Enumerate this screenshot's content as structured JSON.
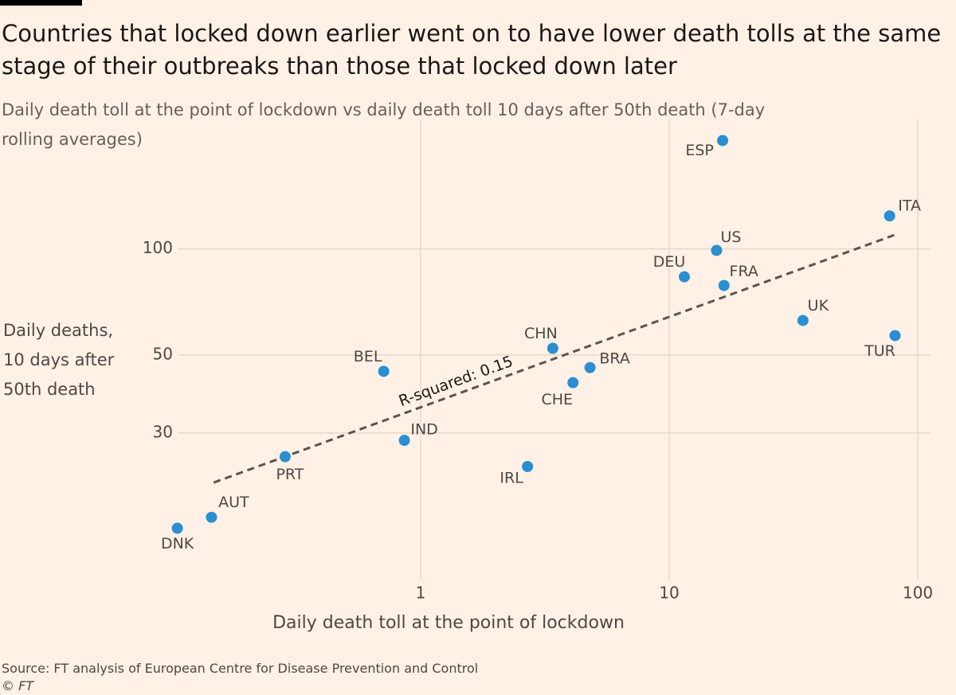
{
  "chart_data": {
    "type": "scatter",
    "title": "Countries that locked down earlier went on to have lower death tolls at the same stage of their outbreaks than those that locked down later",
    "subtitle": "Daily death toll at the point of lockdown vs daily death toll 10 days after 50th death (7-day rolling averages)",
    "x_label": "Daily death toll at the point of lockdown",
    "y_label": "Daily deaths, 10 days after 50th death",
    "source": "Source: FT analysis of European Centre for Disease Prevention and Control",
    "copyright": "© FT",
    "x_scale": "log",
    "y_scale": "log",
    "grid": true,
    "xlim": [
      0.1,
      110
    ],
    "ylim": [
      12,
      210
    ],
    "xticks": [
      1,
      10,
      100
    ],
    "yticks": [
      30,
      50,
      100
    ],
    "series": [
      {
        "color": "#2a8fd1",
        "labels": [
          "DNK",
          "AUT",
          "PRT",
          "BEL",
          "IND",
          "IRL",
          "CHN",
          "CHE",
          "BRA",
          "DEU",
          "US",
          "FRA",
          "ESP",
          "UK",
          "ITA",
          "TUR"
        ],
        "x": [
          0.105,
          0.144,
          0.285,
          0.71,
          0.86,
          2.69,
          3.4,
          4.1,
          4.8,
          11.5,
          15.5,
          16.6,
          16.4,
          34.5,
          77,
          81
        ],
        "y": [
          16.1,
          17.3,
          25.7,
          44.9,
          28.6,
          24.1,
          52.2,
          41.7,
          46.0,
          83.3,
          99,
          78.7,
          203,
          62.6,
          124,
          56.7
        ]
      }
    ],
    "trendline": {
      "label": "R-squared: 0.15",
      "color": "#5a5550",
      "x": [
        0.147,
        82
      ],
      "y": [
        21.7,
        110
      ]
    }
  }
}
